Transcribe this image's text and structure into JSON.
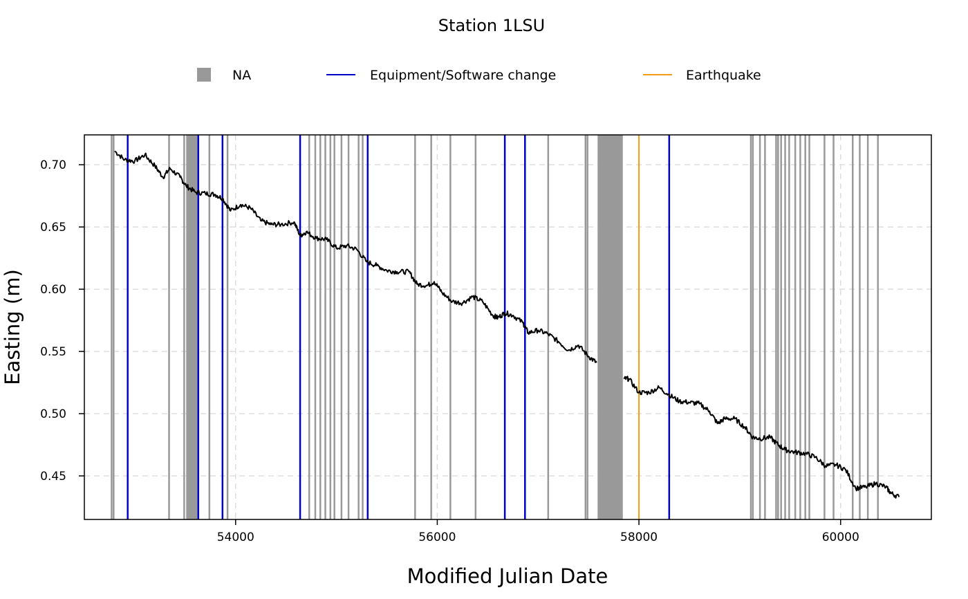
{
  "chart_data": {
    "type": "line",
    "title": "Station 1LSU",
    "xlabel": "Modified Julian Date",
    "ylabel": "Easting (m)",
    "xlim": [
      52500,
      60900
    ],
    "ylim": [
      0.415,
      0.724
    ],
    "xticks": [
      54000,
      56000,
      58000,
      60000
    ],
    "xtick_labels": [
      "54000",
      "56000",
      "58000",
      "60000"
    ],
    "yticks": [
      0.45,
      0.5,
      0.55,
      0.6,
      0.65,
      0.7
    ],
    "ytick_labels": [
      "0.45",
      "0.50",
      "0.55",
      "0.60",
      "0.65",
      "0.70"
    ],
    "grid": true,
    "legend": {
      "placement": "top",
      "entries": [
        {
          "label": "NA",
          "symbol": "box",
          "color": "#999999"
        },
        {
          "label": "Equipment/Software change",
          "symbol": "line",
          "color": "#0000cc"
        },
        {
          "label": "Earthquake",
          "symbol": "line",
          "color": "#f39c12"
        }
      ]
    },
    "series": [
      {
        "color": "#000000",
        "points": [
          [
            52800,
            0.711
          ],
          [
            52900,
            0.704
          ],
          [
            53000,
            0.703
          ],
          [
            53100,
            0.708
          ],
          [
            53200,
            0.699
          ],
          [
            53280,
            0.69
          ],
          [
            53350,
            0.697
          ],
          [
            53450,
            0.69
          ],
          [
            53510,
            0.683
          ],
          [
            53600,
            0.678
          ],
          [
            53700,
            0.677
          ],
          [
            53800,
            0.676
          ],
          [
            53870,
            0.673
          ],
          [
            53950,
            0.663
          ],
          [
            54050,
            0.668
          ],
          [
            54150,
            0.665
          ],
          [
            54250,
            0.655
          ],
          [
            54350,
            0.652
          ],
          [
            54450,
            0.652
          ],
          [
            54580,
            0.654
          ],
          [
            54640,
            0.643
          ],
          [
            54700,
            0.646
          ],
          [
            54800,
            0.641
          ],
          [
            54900,
            0.64
          ],
          [
            55000,
            0.633
          ],
          [
            55100,
            0.635
          ],
          [
            55200,
            0.632
          ],
          [
            55300,
            0.622
          ],
          [
            55400,
            0.619
          ],
          [
            55500,
            0.615
          ],
          [
            55600,
            0.614
          ],
          [
            55720,
            0.614
          ],
          [
            55800,
            0.604
          ],
          [
            55900,
            0.603
          ],
          [
            55970,
            0.606
          ],
          [
            56050,
            0.597
          ],
          [
            56150,
            0.59
          ],
          [
            56250,
            0.589
          ],
          [
            56350,
            0.594
          ],
          [
            56450,
            0.59
          ],
          [
            56550,
            0.579
          ],
          [
            56600,
            0.577
          ],
          [
            56670,
            0.581
          ],
          [
            56750,
            0.579
          ],
          [
            56850,
            0.573
          ],
          [
            56900,
            0.565
          ],
          [
            57000,
            0.567
          ],
          [
            57100,
            0.564
          ],
          [
            57200,
            0.558
          ],
          [
            57300,
            0.551
          ],
          [
            57400,
            0.555
          ],
          [
            57500,
            0.546
          ],
          [
            57580,
            0.541
          ],
          [
            57850,
            0.528
          ],
          [
            57900,
            0.528
          ],
          [
            58000,
            0.517
          ],
          [
            58100,
            0.517
          ],
          [
            58200,
            0.521
          ],
          [
            58300,
            0.515
          ],
          [
            58400,
            0.51
          ],
          [
            58500,
            0.509
          ],
          [
            58600,
            0.508
          ],
          [
            58700,
            0.502
          ],
          [
            58780,
            0.492
          ],
          [
            58850,
            0.496
          ],
          [
            58950,
            0.496
          ],
          [
            59050,
            0.489
          ],
          [
            59130,
            0.481
          ],
          [
            59200,
            0.48
          ],
          [
            59300,
            0.481
          ],
          [
            59380,
            0.475
          ],
          [
            59450,
            0.471
          ],
          [
            59550,
            0.469
          ],
          [
            59650,
            0.468
          ],
          [
            59750,
            0.465
          ],
          [
            59850,
            0.458
          ],
          [
            59950,
            0.459
          ],
          [
            60050,
            0.455
          ],
          [
            60150,
            0.44
          ],
          [
            60250,
            0.441
          ],
          [
            60350,
            0.444
          ],
          [
            60450,
            0.441
          ],
          [
            60500,
            0.436
          ],
          [
            60580,
            0.433
          ]
        ]
      }
    ],
    "na_lines": [
      52770,
      52790,
      53340,
      53490,
      53740,
      53920,
      54730,
      54790,
      54840,
      54890,
      54940,
      54980,
      55050,
      55120,
      55220,
      55260,
      55780,
      55940,
      56130,
      56380,
      57100,
      57470,
      57490,
      59110,
      59130,
      59200,
      59250,
      59360,
      59380,
      59410,
      59450,
      59490,
      59550,
      59600,
      59650,
      59690,
      59840,
      59930,
      60120,
      60190,
      60270,
      60370
    ],
    "na_spans": [
      [
        53510,
        53630
      ],
      [
        57590,
        57840
      ]
    ],
    "equipment_changes": [
      52930,
      53630,
      53870,
      54640,
      55310,
      56670,
      56870,
      58300
    ],
    "earthquakes": [
      58000
    ]
  }
}
